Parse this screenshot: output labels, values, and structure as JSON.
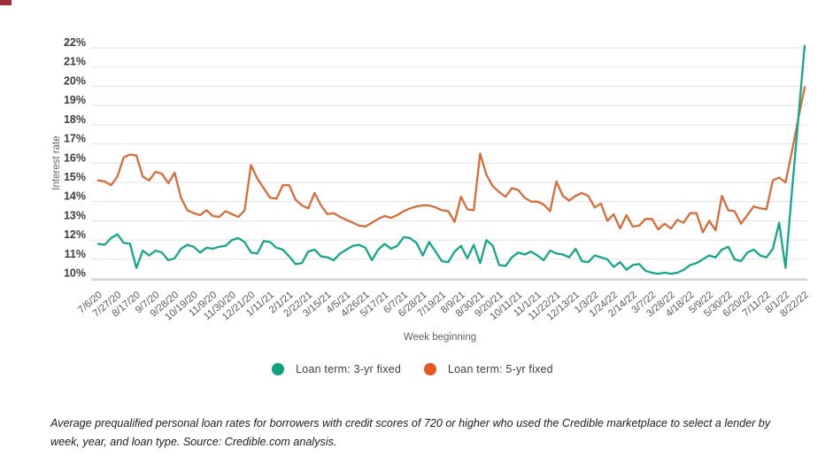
{
  "artifact": {
    "color": "#9e3039"
  },
  "chart": {
    "legend": [
      {
        "label": "Loan term: 3-yr fixed",
        "color": "#09a37f"
      },
      {
        "label": "Loan term: 5-yr fixed",
        "color": "#e8581c"
      }
    ],
    "caption": "Average prequalified personal loan rates for borrowers with credit scores of 720 or higher who used the Credible marketplace to select a lender by week, year, and loan type. Source: Credible.com analysis."
  },
  "chart_data": {
    "type": "line",
    "title": "",
    "xlabel": "Week beginning",
    "ylabel": "Interest rate",
    "ylim": [
      10,
      22
    ],
    "grid": true,
    "legend_position": "bottom",
    "y_tick_labels": [
      "22%",
      "21%",
      "20%",
      "19%",
      "18%",
      "17%",
      "16%",
      "15%",
      "14%",
      "13%",
      "12%",
      "11%",
      "10%"
    ],
    "x_tick_interval_weeks": 3,
    "x_tick_labels": [
      "7/6/20",
      "7/27/20",
      "8/17/20",
      "9/7/20",
      "9/28/20",
      "10/19/20",
      "11/9/20",
      "11/30/20",
      "12/21/20",
      "1/11/21",
      "2/1/21",
      "2/22/21",
      "3/15/21",
      "4/5/21",
      "4/26/21",
      "5/17/21",
      "6/7/21",
      "6/28/21",
      "7/19/21",
      "8/9/21",
      "8/30/21",
      "9/20/21",
      "10/11/21",
      "11/1/21",
      "11/22/21",
      "12/13/21",
      "1/3/22",
      "1/24/22",
      "2/14/22",
      "3/7/22",
      "3/28/22",
      "4/18/22",
      "5/9/22",
      "5/30/22",
      "6/20/22",
      "7/11/22",
      "8/1/22",
      "8/22/22"
    ],
    "series": [
      {
        "name": "Loan term: 5-yr fixed",
        "color": "#d96c38",
        "values": [
          15.1,
          15.05,
          14.85,
          15.3,
          16.3,
          16.45,
          16.4,
          15.3,
          15.1,
          15.55,
          15.45,
          14.95,
          15.5,
          14.2,
          13.55,
          13.4,
          13.3,
          13.55,
          13.25,
          13.2,
          13.5,
          13.35,
          13.2,
          13.55,
          15.9,
          15.2,
          14.7,
          14.2,
          14.15,
          14.85,
          14.85,
          14.1,
          13.8,
          13.65,
          14.45,
          13.8,
          13.35,
          13.4,
          13.2,
          13.05,
          12.9,
          12.75,
          12.7,
          12.9,
          13.1,
          13.25,
          13.15,
          13.3,
          13.5,
          13.65,
          13.75,
          13.8,
          13.8,
          13.7,
          13.55,
          13.5,
          12.95,
          14.25,
          13.6,
          13.55,
          16.5,
          15.4,
          14.8,
          14.5,
          14.25,
          14.7,
          14.6,
          14.2,
          14.0,
          14.0,
          13.85,
          13.5,
          15.05,
          14.3,
          14.05,
          14.3,
          14.45,
          14.3,
          13.7,
          13.9,
          13.0,
          13.35,
          12.6,
          13.3,
          12.7,
          12.75,
          13.1,
          13.1,
          12.55,
          12.85,
          12.6,
          13.05,
          12.9,
          13.4,
          13.4,
          12.4,
          13.0,
          12.5,
          14.3,
          13.55,
          13.5,
          12.85,
          13.3,
          13.75,
          13.65,
          13.6,
          15.1,
          15.25,
          15.0,
          16.6,
          18.3,
          19.95
        ]
      },
      {
        "name": "Loan term: 3-yr fixed",
        "color": "#14a78c",
        "values": [
          11.8,
          11.75,
          12.1,
          12.3,
          11.85,
          11.8,
          10.55,
          11.45,
          11.2,
          11.45,
          11.35,
          10.95,
          11.05,
          11.55,
          11.75,
          11.65,
          11.35,
          11.6,
          11.55,
          11.65,
          11.7,
          12.0,
          12.1,
          11.9,
          11.35,
          11.3,
          11.95,
          11.9,
          11.6,
          11.5,
          11.15,
          10.75,
          10.8,
          11.4,
          11.5,
          11.15,
          11.1,
          10.95,
          11.3,
          11.5,
          11.7,
          11.75,
          11.6,
          10.95,
          11.5,
          11.8,
          11.55,
          11.7,
          12.15,
          12.1,
          11.85,
          11.2,
          11.9,
          11.4,
          10.9,
          10.85,
          11.4,
          11.7,
          11.05,
          11.75,
          10.8,
          12.0,
          11.7,
          10.7,
          10.65,
          11.1,
          11.35,
          11.25,
          11.4,
          11.2,
          10.95,
          11.45,
          11.3,
          11.25,
          11.1,
          11.55,
          10.9,
          10.85,
          11.2,
          11.1,
          11.0,
          10.6,
          10.85,
          10.45,
          10.7,
          10.75,
          10.4,
          10.3,
          10.25,
          10.3,
          10.25,
          10.3,
          10.45,
          10.7,
          10.8,
          11.0,
          11.2,
          11.1,
          11.5,
          11.65,
          11.0,
          10.9,
          11.35,
          11.5,
          11.2,
          11.1,
          11.55,
          12.9,
          10.55,
          14.5,
          18.3,
          22.1
        ]
      }
    ]
  }
}
